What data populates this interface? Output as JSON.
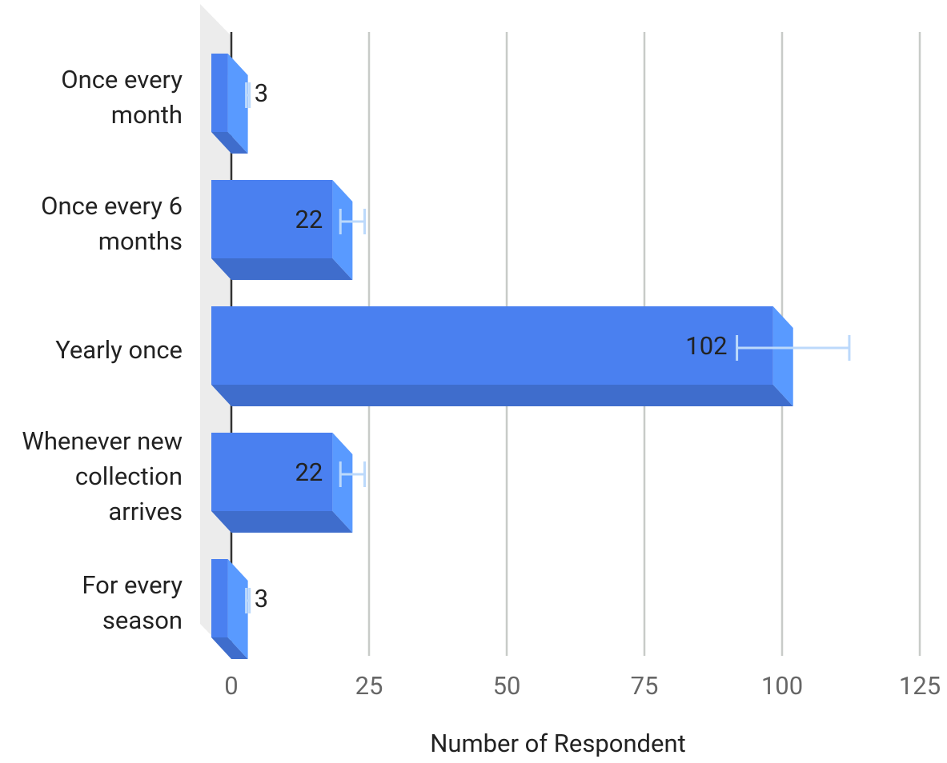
{
  "chart_data": {
    "type": "bar",
    "orientation": "horizontal",
    "three_d": true,
    "categories": [
      "Once every month",
      "Once every 6 months",
      "Yearly once",
      "Whenever new collection arrives",
      "For every season"
    ],
    "values": [
      3,
      22,
      102,
      22,
      3
    ],
    "errors": [
      0.3,
      2.2,
      10.2,
      2.2,
      0.3
    ],
    "color": "#4a80f0",
    "error_color": "#bcd9fb",
    "xlabel": "Number of Respondent",
    "xlim": [
      0,
      125
    ],
    "xticks": [
      0,
      25,
      50,
      75,
      100,
      125
    ],
    "grid": true
  }
}
